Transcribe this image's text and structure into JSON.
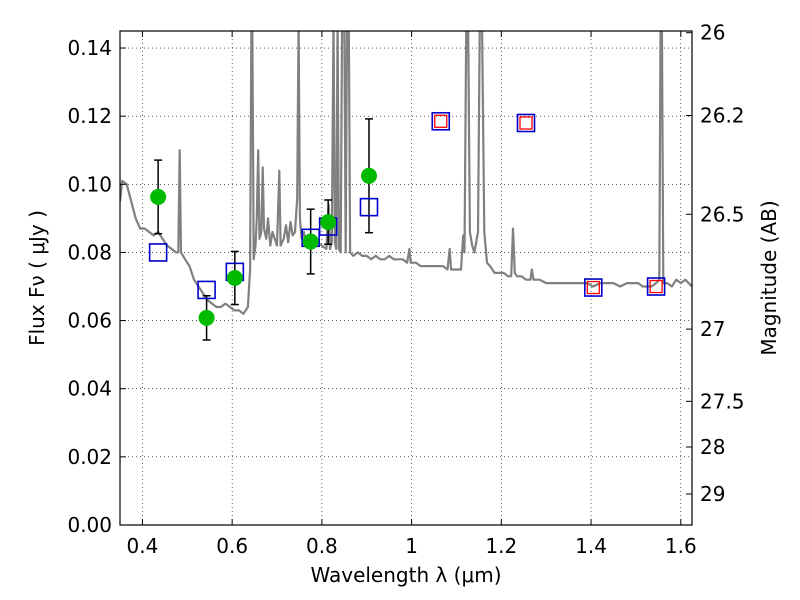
{
  "chart_data": {
    "type": "scatter",
    "xlabel": "Wavelength  λ (μm)",
    "ylabel": "Flux  Fν  ( μJy )",
    "y2label": "Magnitude (AB)",
    "xlim": [
      0.35,
      1.625
    ],
    "ylim": [
      0.0,
      0.145
    ],
    "grid": true,
    "x_ticks": [
      0.4,
      0.6,
      0.8,
      1.0,
      1.2,
      1.4,
      1.6
    ],
    "x_tick_labels": [
      "0.4",
      "0.6",
      "0.8",
      "1",
      "1.2",
      "1.4",
      "1.6"
    ],
    "y_ticks": [
      0.0,
      0.02,
      0.04,
      0.06,
      0.08,
      0.1,
      0.12,
      0.14
    ],
    "y_tick_labels": [
      "0.00",
      "0.02",
      "0.04",
      "0.06",
      "0.08",
      "0.10",
      "0.12",
      "0.14"
    ],
    "mag_ticks": [
      {
        "label": "26",
        "flux": 0.1445
      },
      {
        "label": "26.2",
        "flux": 0.1202
      },
      {
        "label": "26.5",
        "flux": 0.0912
      },
      {
        "label": "27",
        "flux": 0.0575
      },
      {
        "label": "27.5",
        "flux": 0.0363
      },
      {
        "label": "28",
        "flux": 0.0229
      },
      {
        "label": "29",
        "flux": 0.0091
      }
    ],
    "colors": {
      "spectrum": "#808080",
      "observed": "#00bb00",
      "model_square": "#0000cc",
      "model_inner": "#ff0000",
      "errorbar": "#000000"
    },
    "spectrum": [
      [
        0.35,
        0.095
      ],
      [
        0.355,
        0.101
      ],
      [
        0.365,
        0.1
      ],
      [
        0.375,
        0.095
      ],
      [
        0.385,
        0.09
      ],
      [
        0.395,
        0.087
      ],
      [
        0.405,
        0.087
      ],
      [
        0.415,
        0.086
      ],
      [
        0.425,
        0.085
      ],
      [
        0.435,
        0.086
      ],
      [
        0.445,
        0.084
      ],
      [
        0.455,
        0.082
      ],
      [
        0.465,
        0.081
      ],
      [
        0.475,
        0.08
      ],
      [
        0.48,
        0.08
      ],
      [
        0.483,
        0.11
      ],
      [
        0.486,
        0.08
      ],
      [
        0.495,
        0.078
      ],
      [
        0.505,
        0.076
      ],
      [
        0.515,
        0.072
      ],
      [
        0.525,
        0.07
      ],
      [
        0.535,
        0.068
      ],
      [
        0.545,
        0.066
      ],
      [
        0.555,
        0.065
      ],
      [
        0.565,
        0.064
      ],
      [
        0.575,
        0.064
      ],
      [
        0.585,
        0.065
      ],
      [
        0.595,
        0.064
      ],
      [
        0.605,
        0.063
      ],
      [
        0.615,
        0.063
      ],
      [
        0.625,
        0.062
      ],
      [
        0.635,
        0.064
      ],
      [
        0.64,
        0.075
      ],
      [
        0.643,
        0.148
      ],
      [
        0.645,
        0.148
      ],
      [
        0.648,
        0.078
      ],
      [
        0.652,
        0.082
      ],
      [
        0.655,
        0.09
      ],
      [
        0.658,
        0.11
      ],
      [
        0.661,
        0.084
      ],
      [
        0.665,
        0.086
      ],
      [
        0.668,
        0.105
      ],
      [
        0.671,
        0.087
      ],
      [
        0.676,
        0.084
      ],
      [
        0.68,
        0.09
      ],
      [
        0.685,
        0.082
      ],
      [
        0.69,
        0.086
      ],
      [
        0.7,
        0.082
      ],
      [
        0.705,
        0.104
      ],
      [
        0.708,
        0.082
      ],
      [
        0.715,
        0.084
      ],
      [
        0.72,
        0.088
      ],
      [
        0.725,
        0.083
      ],
      [
        0.73,
        0.089
      ],
      [
        0.735,
        0.085
      ],
      [
        0.74,
        0.086
      ],
      [
        0.745,
        0.096
      ],
      [
        0.748,
        0.148
      ],
      [
        0.751,
        0.09
      ],
      [
        0.755,
        0.084
      ],
      [
        0.76,
        0.086
      ],
      [
        0.765,
        0.082
      ],
      [
        0.77,
        0.085
      ],
      [
        0.775,
        0.083
      ],
      [
        0.78,
        0.084
      ],
      [
        0.785,
        0.082
      ],
      [
        0.79,
        0.083
      ],
      [
        0.8,
        0.082
      ],
      [
        0.81,
        0.081
      ],
      [
        0.815,
        0.094
      ],
      [
        0.818,
        0.081
      ],
      [
        0.822,
        0.083
      ],
      [
        0.826,
        0.148
      ],
      [
        0.829,
        0.083
      ],
      [
        0.832,
        0.081
      ],
      [
        0.835,
        0.148
      ],
      [
        0.838,
        0.081
      ],
      [
        0.842,
        0.08
      ],
      [
        0.845,
        0.148
      ],
      [
        0.85,
        0.148
      ],
      [
        0.853,
        0.08
      ],
      [
        0.856,
        0.148
      ],
      [
        0.86,
        0.148
      ],
      [
        0.863,
        0.08
      ],
      [
        0.87,
        0.079
      ],
      [
        0.88,
        0.08
      ],
      [
        0.89,
        0.079
      ],
      [
        0.9,
        0.079
      ],
      [
        0.91,
        0.078
      ],
      [
        0.92,
        0.079
      ],
      [
        0.93,
        0.078
      ],
      [
        0.94,
        0.078
      ],
      [
        0.95,
        0.079
      ],
      [
        0.96,
        0.078
      ],
      [
        0.97,
        0.078
      ],
      [
        0.98,
        0.078
      ],
      [
        0.99,
        0.077
      ],
      [
        0.995,
        0.081
      ],
      [
        0.998,
        0.077
      ],
      [
        1.01,
        0.077
      ],
      [
        1.02,
        0.076
      ],
      [
        1.03,
        0.076
      ],
      [
        1.04,
        0.076
      ],
      [
        1.05,
        0.076
      ],
      [
        1.06,
        0.076
      ],
      [
        1.07,
        0.076
      ],
      [
        1.08,
        0.075
      ],
      [
        1.085,
        0.081
      ],
      [
        1.088,
        0.075
      ],
      [
        1.1,
        0.075
      ],
      [
        1.11,
        0.075
      ],
      [
        1.115,
        0.085
      ],
      [
        1.118,
        0.08
      ],
      [
        1.122,
        0.148
      ],
      [
        1.126,
        0.148
      ],
      [
        1.13,
        0.086
      ],
      [
        1.135,
        0.082
      ],
      [
        1.14,
        0.08
      ],
      [
        1.148,
        0.086
      ],
      [
        1.152,
        0.148
      ],
      [
        1.157,
        0.148
      ],
      [
        1.162,
        0.086
      ],
      [
        1.168,
        0.077
      ],
      [
        1.175,
        0.076
      ],
      [
        1.185,
        0.074
      ],
      [
        1.195,
        0.074
      ],
      [
        1.205,
        0.074
      ],
      [
        1.215,
        0.073
      ],
      [
        1.222,
        0.073
      ],
      [
        1.226,
        0.087
      ],
      [
        1.23,
        0.074
      ],
      [
        1.235,
        0.073
      ],
      [
        1.245,
        0.073
      ],
      [
        1.255,
        0.072
      ],
      [
        1.265,
        0.072
      ],
      [
        1.268,
        0.075
      ],
      [
        1.272,
        0.072
      ],
      [
        1.285,
        0.072
      ],
      [
        1.3,
        0.071
      ],
      [
        1.315,
        0.071
      ],
      [
        1.33,
        0.071
      ],
      [
        1.345,
        0.071
      ],
      [
        1.36,
        0.071
      ],
      [
        1.375,
        0.071
      ],
      [
        1.39,
        0.071
      ],
      [
        1.405,
        0.07
      ],
      [
        1.42,
        0.071
      ],
      [
        1.435,
        0.071
      ],
      [
        1.45,
        0.071
      ],
      [
        1.465,
        0.07
      ],
      [
        1.48,
        0.071
      ],
      [
        1.495,
        0.071
      ],
      [
        1.505,
        0.071
      ],
      [
        1.515,
        0.07
      ],
      [
        1.525,
        0.07
      ],
      [
        1.535,
        0.07
      ],
      [
        1.545,
        0.071
      ],
      [
        1.552,
        0.072
      ],
      [
        1.555,
        0.148
      ],
      [
        1.558,
        0.148
      ],
      [
        1.561,
        0.071
      ],
      [
        1.57,
        0.071
      ],
      [
        1.58,
        0.07
      ],
      [
        1.59,
        0.072
      ],
      [
        1.6,
        0.071
      ],
      [
        1.61,
        0.072
      ],
      [
        1.625,
        0.07
      ]
    ],
    "observed": [
      {
        "x": 0.435,
        "y": 0.0963,
        "err": 0.0108
      },
      {
        "x": 0.543,
        "y": 0.0608,
        "err": 0.0065
      },
      {
        "x": 0.606,
        "y": 0.0725,
        "err": 0.0078
      },
      {
        "x": 0.775,
        "y": 0.0832,
        "err": 0.0095
      },
      {
        "x": 0.814,
        "y": 0.0889,
        "err": 0.0065
      },
      {
        "x": 0.905,
        "y": 0.1025,
        "err": 0.0167
      }
    ],
    "model_points": [
      {
        "x": 0.435,
        "y": 0.08,
        "inner": false
      },
      {
        "x": 0.543,
        "y": 0.069,
        "inner": false
      },
      {
        "x": 0.606,
        "y": 0.0743,
        "inner": false
      },
      {
        "x": 0.775,
        "y": 0.0843,
        "inner": false
      },
      {
        "x": 0.814,
        "y": 0.0876,
        "inner": false
      },
      {
        "x": 0.905,
        "y": 0.0933,
        "inner": false
      },
      {
        "x": 1.065,
        "y": 0.1185,
        "inner": true
      },
      {
        "x": 1.255,
        "y": 0.118,
        "inner": true
      },
      {
        "x": 1.405,
        "y": 0.0697,
        "inner": true
      },
      {
        "x": 1.545,
        "y": 0.07,
        "inner": true
      }
    ]
  }
}
